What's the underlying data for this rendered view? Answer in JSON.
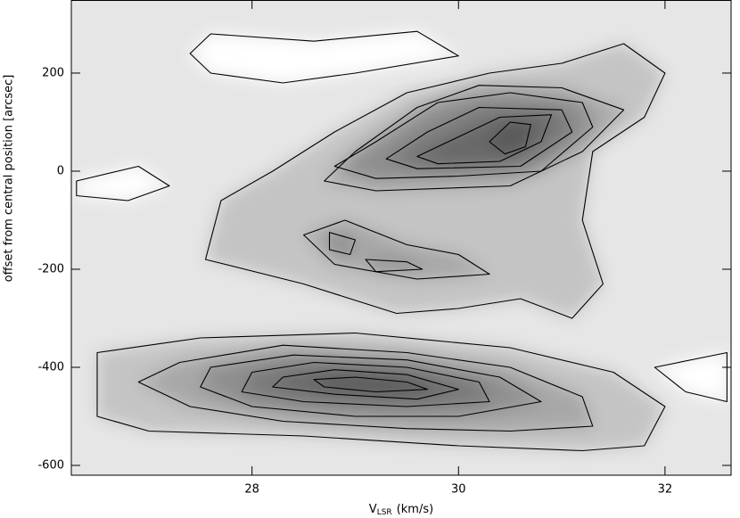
{
  "chart_data": {
    "type": "contour",
    "x_label": "V",
    "x_label_sub": "LSR",
    "x_label_unit": "(km/s)",
    "y_label": "offset from central position [arcsec]",
    "xlim": [
      26.25,
      32.64
    ],
    "ylim": [
      -620,
      349
    ],
    "xticks": [
      28,
      30,
      32
    ],
    "yticks": [
      -600,
      -400,
      -200,
      0,
      200
    ],
    "background": "#e6e6e6",
    "contour_shade": "rgba(0,0,0,0.15)",
    "line_color": "#000000",
    "contours": [
      {
        "fill": "#ffffff",
        "points": [
          [
            27.4,
            240
          ],
          [
            27.6,
            280
          ],
          [
            28.6,
            265
          ],
          [
            29.6,
            285
          ],
          [
            30.0,
            235
          ],
          [
            29.0,
            200
          ],
          [
            28.3,
            180
          ],
          [
            27.6,
            200
          ]
        ]
      },
      {
        "fill": "#ffffff",
        "points": [
          [
            31.9,
            -400
          ],
          [
            32.6,
            -370
          ],
          [
            32.6,
            -470
          ],
          [
            32.2,
            -450
          ]
        ]
      },
      {
        "fill": "#ffffff",
        "points": [
          [
            26.3,
            -20
          ],
          [
            26.9,
            10
          ],
          [
            27.2,
            -30
          ],
          [
            26.8,
            -60
          ],
          [
            26.3,
            -50
          ]
        ]
      },
      {
        "points": [
          [
            27.55,
            -180
          ],
          [
            27.7,
            -60
          ],
          [
            28.2,
            0
          ],
          [
            28.8,
            80
          ],
          [
            29.5,
            160
          ],
          [
            30.3,
            200
          ],
          [
            31.0,
            220
          ],
          [
            31.6,
            260
          ],
          [
            32.0,
            200
          ],
          [
            31.8,
            110
          ],
          [
            31.3,
            40
          ],
          [
            31.2,
            -100
          ],
          [
            31.4,
            -230
          ],
          [
            31.1,
            -300
          ],
          [
            30.6,
            -260
          ],
          [
            30.0,
            -280
          ],
          [
            29.4,
            -290
          ],
          [
            28.5,
            -230
          ]
        ]
      },
      {
        "points": [
          [
            28.7,
            -20
          ],
          [
            29.0,
            40
          ],
          [
            29.6,
            130
          ],
          [
            30.2,
            175
          ],
          [
            31.0,
            170
          ],
          [
            31.6,
            125
          ],
          [
            31.2,
            40
          ],
          [
            30.5,
            -30
          ],
          [
            29.2,
            -40
          ]
        ]
      },
      {
        "points": [
          [
            28.8,
            10
          ],
          [
            29.2,
            60
          ],
          [
            29.8,
            140
          ],
          [
            30.5,
            160
          ],
          [
            31.2,
            140
          ],
          [
            31.3,
            90
          ],
          [
            30.8,
            0
          ],
          [
            30.0,
            -10
          ],
          [
            29.2,
            -15
          ]
        ]
      },
      {
        "points": [
          [
            29.3,
            25
          ],
          [
            29.7,
            80
          ],
          [
            30.2,
            130
          ],
          [
            31.0,
            125
          ],
          [
            31.1,
            80
          ],
          [
            30.6,
            10
          ],
          [
            29.6,
            5
          ]
        ]
      },
      {
        "points": [
          [
            29.6,
            30
          ],
          [
            30.0,
            70
          ],
          [
            30.4,
            110
          ],
          [
            30.9,
            115
          ],
          [
            30.8,
            60
          ],
          [
            30.4,
            20
          ],
          [
            29.8,
            15
          ]
        ]
      },
      {
        "points": [
          [
            30.3,
            60
          ],
          [
            30.5,
            100
          ],
          [
            30.7,
            95
          ],
          [
            30.65,
            50
          ],
          [
            30.45,
            35
          ]
        ]
      },
      {
        "points": [
          [
            28.5,
            -130
          ],
          [
            28.9,
            -100
          ],
          [
            29.5,
            -150
          ],
          [
            30.0,
            -170
          ],
          [
            30.3,
            -210
          ],
          [
            29.6,
            -220
          ],
          [
            28.8,
            -190
          ]
        ]
      },
      {
        "points": [
          [
            28.75,
            -125
          ],
          [
            29.0,
            -140
          ],
          [
            28.95,
            -170
          ],
          [
            28.75,
            -160
          ]
        ]
      },
      {
        "points": [
          [
            29.1,
            -180
          ],
          [
            29.5,
            -185
          ],
          [
            29.65,
            -200
          ],
          [
            29.2,
            -205
          ]
        ]
      },
      {
        "points": [
          [
            26.5,
            -370
          ],
          [
            27.5,
            -340
          ],
          [
            29.0,
            -330
          ],
          [
            30.5,
            -360
          ],
          [
            31.5,
            -410
          ],
          [
            32.0,
            -480
          ],
          [
            31.8,
            -560
          ],
          [
            31.2,
            -570
          ],
          [
            30.0,
            -560
          ],
          [
            28.5,
            -540
          ],
          [
            27.0,
            -530
          ],
          [
            26.5,
            -500
          ]
        ]
      },
      {
        "points": [
          [
            27.3,
            -390
          ],
          [
            28.3,
            -355
          ],
          [
            29.5,
            -370
          ],
          [
            30.5,
            -400
          ],
          [
            31.2,
            -460
          ],
          [
            31.3,
            -520
          ],
          [
            30.5,
            -530
          ],
          [
            29.5,
            -525
          ],
          [
            28.3,
            -510
          ],
          [
            27.4,
            -480
          ],
          [
            26.9,
            -430
          ]
        ]
      },
      {
        "points": [
          [
            27.6,
            -400
          ],
          [
            28.4,
            -375
          ],
          [
            29.5,
            -385
          ],
          [
            30.4,
            -420
          ],
          [
            30.8,
            -470
          ],
          [
            30.0,
            -500
          ],
          [
            29.0,
            -500
          ],
          [
            28.0,
            -480
          ],
          [
            27.5,
            -440
          ]
        ]
      },
      {
        "points": [
          [
            28.0,
            -410
          ],
          [
            28.6,
            -390
          ],
          [
            29.5,
            -400
          ],
          [
            30.2,
            -430
          ],
          [
            30.3,
            -470
          ],
          [
            29.5,
            -480
          ],
          [
            28.5,
            -470
          ],
          [
            27.9,
            -450
          ]
        ]
      },
      {
        "points": [
          [
            28.3,
            -420
          ],
          [
            28.8,
            -405
          ],
          [
            29.5,
            -415
          ],
          [
            30.0,
            -445
          ],
          [
            29.6,
            -465
          ],
          [
            28.8,
            -455
          ],
          [
            28.2,
            -440
          ]
        ]
      },
      {
        "points": [
          [
            28.6,
            -425
          ],
          [
            29.0,
            -420
          ],
          [
            29.5,
            -430
          ],
          [
            29.7,
            -445
          ],
          [
            29.2,
            -450
          ],
          [
            28.7,
            -440
          ]
        ]
      }
    ]
  }
}
